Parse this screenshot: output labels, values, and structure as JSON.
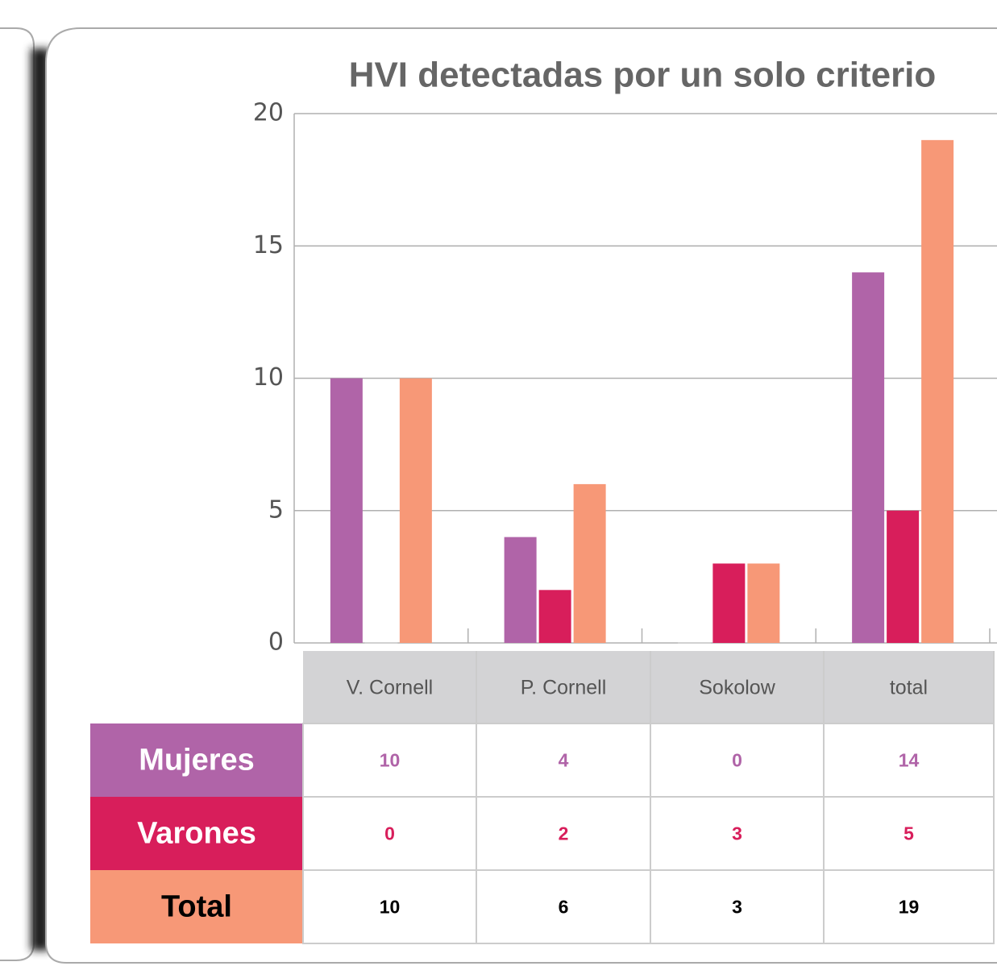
{
  "chart_data": {
    "type": "bar",
    "title": "HVI detectadas por un solo criterio",
    "categories": [
      "V. Cornell",
      "P. Cornell",
      "Sokolow",
      "total"
    ],
    "series": [
      {
        "name": "Mujeres",
        "color": "#b064a8",
        "values": [
          10,
          4,
          0,
          14
        ]
      },
      {
        "name": "Varones",
        "color": "#d81e5b",
        "values": [
          0,
          2,
          3,
          5
        ]
      },
      {
        "name": "Total",
        "color": "#f79877",
        "values": [
          10,
          6,
          3,
          19
        ]
      }
    ],
    "ylim": [
      0,
      20
    ],
    "yticks": [
      0,
      5,
      10,
      15,
      20
    ],
    "grid": true
  }
}
